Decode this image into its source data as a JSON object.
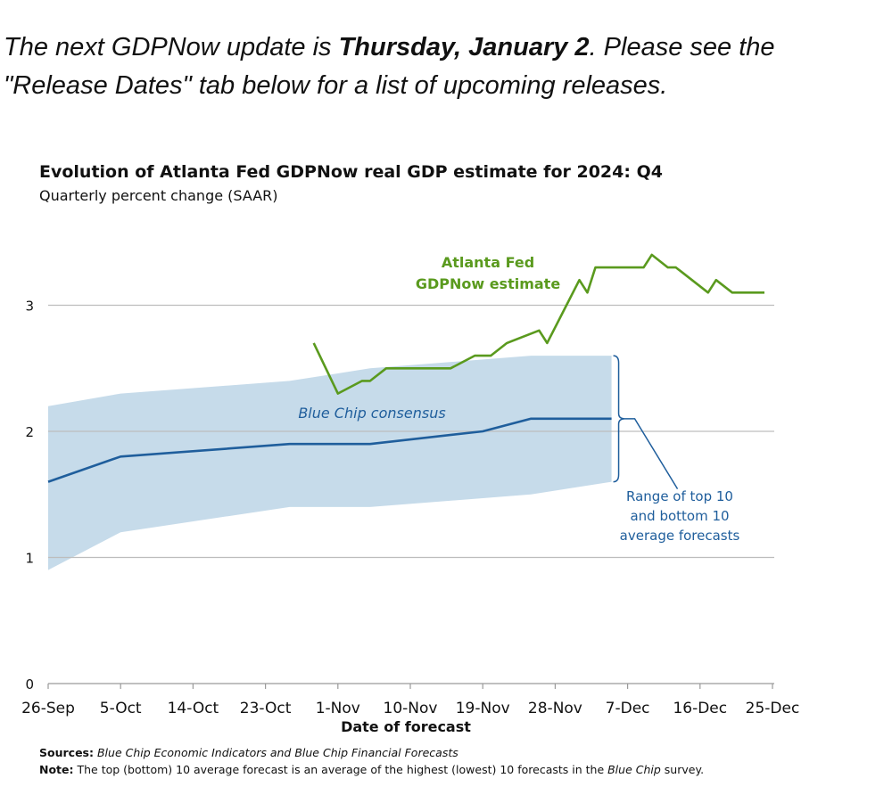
{
  "intro": {
    "part1": "The next GDPNow update is ",
    "date_bold": "Thursday, January 2",
    "part2": ". Please see the \"Release Dates\" tab below for a list of upcoming releases."
  },
  "footer": {
    "sources_label": "Sources:",
    "sources_text": "Blue Chip Economic Indicators and Blue Chip Financial Forecasts",
    "note_label": "Note:",
    "note_text_a": "The top (bottom) 10 average forecast is an average of the highest (lowest) 10 forecasts in the ",
    "note_text_italic": "Blue Chip",
    "note_text_b": " survey."
  },
  "chart_data": {
    "type": "line",
    "title": "Evolution of Atlanta Fed GDPNow real GDP estimate for 2024: Q4",
    "subtitle": "Quarterly percent change (SAAR)",
    "xlabel": "Date of forecast",
    "ylabel": "",
    "ylim": [
      0,
      3.6
    ],
    "yticks": [
      0,
      1,
      2,
      3
    ],
    "x_range": [
      "2024-09-26",
      "2024-12-25"
    ],
    "x_ticks": [
      "26-Sep",
      "5-Oct",
      "14-Oct",
      "23-Oct",
      "1-Nov",
      "10-Nov",
      "19-Nov",
      "28-Nov",
      "7-Dec",
      "16-Dec",
      "25-Dec"
    ],
    "grid": "horizontal",
    "colors": {
      "gdpnow": "#5a9a1e",
      "consensus": "#1f5e9c",
      "range_fill": "#c6dbea",
      "annotation": "#1f5e9c",
      "grid": "#bdbdbd"
    },
    "annotations": {
      "gdpnow_label": [
        "Atlanta Fed",
        "GDPNow estimate"
      ],
      "consensus_label": "Blue Chip consensus",
      "range_label": [
        "Range of top 10",
        "and bottom 10",
        "average forecasts"
      ]
    },
    "series": [
      {
        "name": "Atlanta Fed GDPNow estimate",
        "x": [
          "2024-10-29",
          "2024-11-01",
          "2024-11-04",
          "2024-11-05",
          "2024-11-07",
          "2024-11-08",
          "2024-11-15",
          "2024-11-18",
          "2024-11-20",
          "2024-11-22",
          "2024-11-26",
          "2024-11-27",
          "2024-12-01",
          "2024-12-02",
          "2024-12-03",
          "2024-12-06",
          "2024-12-09",
          "2024-12-10",
          "2024-12-12",
          "2024-12-13",
          "2024-12-17",
          "2024-12-18",
          "2024-12-20",
          "2024-12-24"
        ],
        "y": [
          2.7,
          2.3,
          2.4,
          2.4,
          2.5,
          2.5,
          2.5,
          2.6,
          2.6,
          2.7,
          2.8,
          2.7,
          3.2,
          3.1,
          3.3,
          3.3,
          3.3,
          3.4,
          3.3,
          3.3,
          3.1,
          3.2,
          3.1,
          3.1
        ]
      },
      {
        "name": "Blue Chip consensus",
        "x": [
          "2024-09-26",
          "2024-10-05",
          "2024-10-26",
          "2024-11-05",
          "2024-11-19",
          "2024-11-25",
          "2024-12-05"
        ],
        "y": [
          1.6,
          1.8,
          1.9,
          1.9,
          2.0,
          2.1,
          2.1
        ]
      }
    ],
    "range_band": {
      "x": [
        "2024-09-26",
        "2024-10-05",
        "2024-10-26",
        "2024-11-05",
        "2024-11-25",
        "2024-12-05"
      ],
      "upper": [
        2.2,
        2.3,
        2.4,
        2.5,
        2.6,
        2.6
      ],
      "lower": [
        0.9,
        1.2,
        1.4,
        1.4,
        1.5,
        1.6
      ]
    }
  }
}
